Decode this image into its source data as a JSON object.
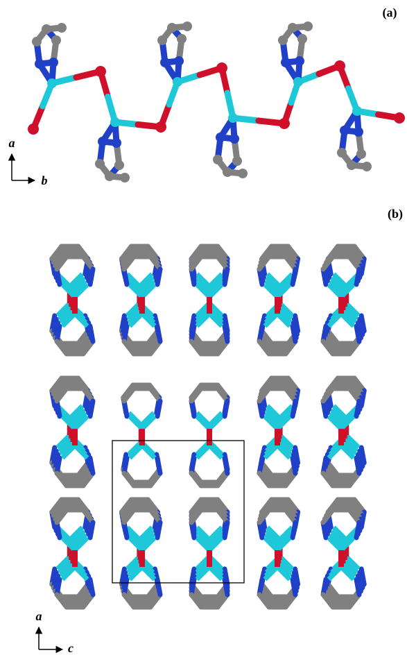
{
  "panel_a": {
    "label": "(a)",
    "axis_vertical": "a",
    "axis_horizontal": "b"
  },
  "panel_b": {
    "label": "(b)",
    "axis_vertical": "a",
    "axis_horizontal": "c"
  }
}
